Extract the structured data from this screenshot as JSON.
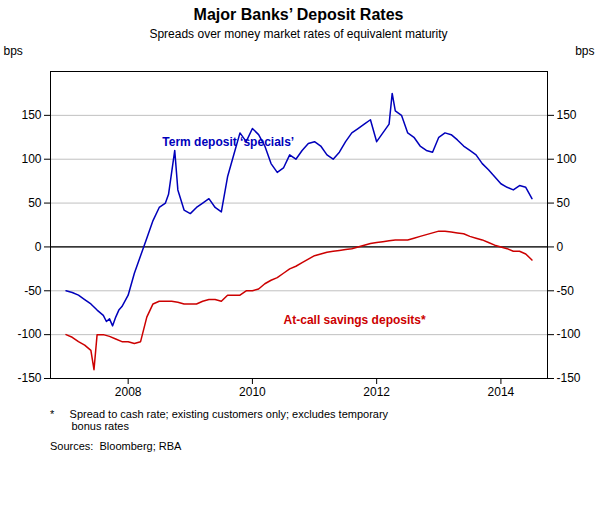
{
  "chart_data": {
    "type": "line",
    "title": "Major Banks’ Deposit Rates",
    "subtitle": "Spreads over money market rates of equivalent maturity",
    "ylabel": "bps",
    "y2label": "bps",
    "ylim": [
      -150,
      200
    ],
    "yticks": [
      -150,
      -100,
      -50,
      0,
      50,
      100,
      150
    ],
    "y2lim": [
      -150,
      200
    ],
    "y2ticks": [
      -150,
      -100,
      -50,
      0,
      50,
      100,
      150
    ],
    "xlim": [
      2006.75,
      2014.75
    ],
    "xticks": [
      2008,
      2010,
      2012,
      2014
    ],
    "grid": true,
    "footnotes": [
      "*     Spread to cash rate; existing customers only; excludes temporary\n       bonus rates",
      "Sources:  Bloomberg; RBA"
    ],
    "series": [
      {
        "name": "Term deposit ‘specials’",
        "color": "#0000BB",
        "x": [
          2007.0,
          2007.1,
          2007.2,
          2007.3,
          2007.4,
          2007.5,
          2007.6,
          2007.65,
          2007.7,
          2007.75,
          2007.8,
          2007.85,
          2007.9,
          2008.0,
          2008.1,
          2008.2,
          2008.3,
          2008.4,
          2008.5,
          2008.6,
          2008.65,
          2008.75,
          2008.8,
          2008.9,
          2009.0,
          2009.1,
          2009.2,
          2009.3,
          2009.4,
          2009.5,
          2009.6,
          2009.7,
          2009.8,
          2009.9,
          2010.0,
          2010.1,
          2010.2,
          2010.3,
          2010.4,
          2010.5,
          2010.6,
          2010.7,
          2010.8,
          2010.9,
          2011.0,
          2011.1,
          2011.2,
          2011.3,
          2011.4,
          2011.5,
          2011.6,
          2011.7,
          2011.8,
          2011.9,
          2012.0,
          2012.1,
          2012.2,
          2012.25,
          2012.3,
          2012.4,
          2012.5,
          2012.6,
          2012.7,
          2012.8,
          2012.9,
          2013.0,
          2013.1,
          2013.2,
          2013.3,
          2013.4,
          2013.5,
          2013.6,
          2013.7,
          2013.8,
          2013.9,
          2014.0,
          2014.1,
          2014.2,
          2014.3,
          2014.4,
          2014.5
        ],
        "values": [
          -50,
          -52,
          -55,
          -60,
          -65,
          -72,
          -78,
          -85,
          -82,
          -90,
          -80,
          -72,
          -68,
          -55,
          -30,
          -10,
          10,
          30,
          45,
          50,
          60,
          110,
          65,
          42,
          38,
          45,
          50,
          55,
          45,
          40,
          80,
          105,
          130,
          120,
          135,
          128,
          115,
          95,
          85,
          90,
          105,
          100,
          110,
          118,
          120,
          115,
          105,
          100,
          108,
          120,
          130,
          135,
          140,
          145,
          120,
          130,
          140,
          175,
          155,
          150,
          130,
          125,
          115,
          110,
          108,
          125,
          130,
          128,
          122,
          115,
          110,
          105,
          95,
          88,
          80,
          72,
          68,
          65,
          70,
          68,
          55
        ]
      },
      {
        "name": "At-call savings deposits*",
        "color": "#CC0000",
        "x": [
          2007.0,
          2007.1,
          2007.2,
          2007.3,
          2007.4,
          2007.45,
          2007.5,
          2007.6,
          2007.7,
          2007.8,
          2007.9,
          2008.0,
          2008.1,
          2008.2,
          2008.3,
          2008.4,
          2008.5,
          2008.6,
          2008.7,
          2008.8,
          2008.9,
          2009.0,
          2009.1,
          2009.2,
          2009.3,
          2009.4,
          2009.5,
          2009.6,
          2009.7,
          2009.8,
          2009.9,
          2010.0,
          2010.1,
          2010.2,
          2010.3,
          2010.4,
          2010.5,
          2010.6,
          2010.7,
          2010.8,
          2010.9,
          2011.0,
          2011.1,
          2011.2,
          2011.3,
          2011.4,
          2011.5,
          2011.6,
          2011.7,
          2011.8,
          2011.9,
          2012.0,
          2012.1,
          2012.2,
          2012.3,
          2012.4,
          2012.5,
          2012.6,
          2012.7,
          2012.8,
          2012.9,
          2013.0,
          2013.1,
          2013.2,
          2013.3,
          2013.4,
          2013.5,
          2013.6,
          2013.7,
          2013.8,
          2013.9,
          2014.0,
          2014.1,
          2014.2,
          2014.3,
          2014.4,
          2014.5
        ],
        "values": [
          -100,
          -103,
          -108,
          -112,
          -118,
          -140,
          -100,
          -100,
          -102,
          -105,
          -108,
          -108,
          -110,
          -108,
          -80,
          -65,
          -62,
          -62,
          -62,
          -63,
          -65,
          -65,
          -65,
          -62,
          -60,
          -60,
          -62,
          -55,
          -55,
          -55,
          -50,
          -50,
          -48,
          -42,
          -38,
          -35,
          -30,
          -25,
          -22,
          -18,
          -14,
          -10,
          -8,
          -6,
          -5,
          -4,
          -3,
          -2,
          0,
          2,
          4,
          5,
          6,
          7,
          8,
          8,
          8,
          10,
          12,
          14,
          16,
          18,
          18,
          17,
          16,
          15,
          12,
          10,
          8,
          5,
          2,
          0,
          -2,
          -5,
          -5,
          -8,
          -15
        ]
      }
    ]
  }
}
